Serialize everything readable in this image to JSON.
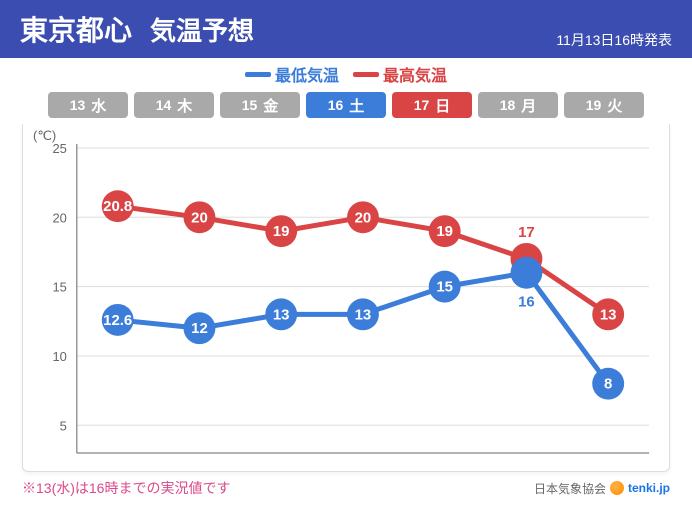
{
  "header": {
    "bg_color": "#3b4db0",
    "title_main": "東京都心",
    "title_sub": "気温予想",
    "timestamp": "11月13日16時発表"
  },
  "legend": {
    "low": {
      "label": "最低気温",
      "color": "#3b7dd8"
    },
    "high": {
      "label": "最高気温",
      "color": "#d94545"
    }
  },
  "dates": [
    {
      "num": "13",
      "dow": "水",
      "bg": "#a9a9a9",
      "fg": "#ffffff"
    },
    {
      "num": "14",
      "dow": "木",
      "bg": "#a9a9a9",
      "fg": "#ffffff"
    },
    {
      "num": "15",
      "dow": "金",
      "bg": "#a9a9a9",
      "fg": "#ffffff"
    },
    {
      "num": "16",
      "dow": "土",
      "bg": "#3b7dd8",
      "fg": "#ffffff"
    },
    {
      "num": "17",
      "dow": "日",
      "bg": "#d94545",
      "fg": "#ffffff"
    },
    {
      "num": "18",
      "dow": "月",
      "bg": "#a9a9a9",
      "fg": "#ffffff"
    },
    {
      "num": "19",
      "dow": "火",
      "bg": "#a9a9a9",
      "fg": "#ffffff"
    }
  ],
  "chart": {
    "type": "line",
    "y_unit": "(℃)",
    "ylim": [
      3,
      25
    ],
    "yticks": [
      5,
      10,
      15,
      20,
      25
    ],
    "grid_color": "#dddddd",
    "axis_color": "#666666",
    "tick_font_size": 13,
    "bg_color": "#ffffff",
    "marker_radius": 16,
    "line_width": 5,
    "value_font_size": 15,
    "series": {
      "high": {
        "color": "#d94545",
        "values": [
          20.8,
          20,
          19,
          20,
          19,
          17,
          13
        ],
        "labels": [
          "20.8",
          "20",
          "19",
          "20",
          "19",
          "17",
          "13"
        ],
        "label_pos": [
          "in",
          "in",
          "in",
          "in",
          "in",
          "above",
          "in"
        ]
      },
      "low": {
        "color": "#3b7dd8",
        "values": [
          12.6,
          12,
          13,
          13,
          15,
          16,
          8
        ],
        "labels": [
          "12.6",
          "12",
          "13",
          "13",
          "15",
          "16",
          "8"
        ],
        "label_pos": [
          "in",
          "in",
          "in",
          "in",
          "in",
          "below",
          "in"
        ]
      }
    }
  },
  "footnote": "※13(水)は16時までの実況値です",
  "credit": "日本気象協会",
  "credit_site": "tenki.jp"
}
